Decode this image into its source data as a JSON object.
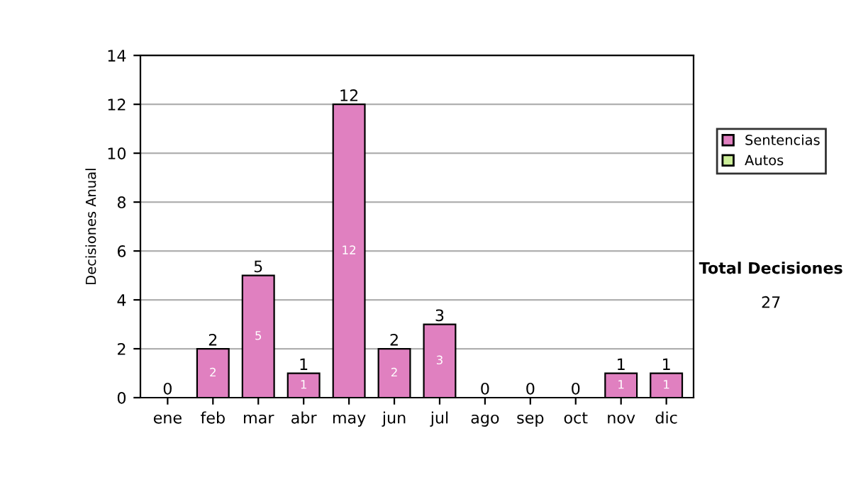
{
  "chart_data": {
    "type": "bar",
    "stacked": true,
    "ylabel": "Decisiones Anual",
    "categories": [
      "ene",
      "feb",
      "mar",
      "abr",
      "may",
      "jun",
      "jul",
      "ago",
      "sep",
      "oct",
      "nov",
      "dic"
    ],
    "series": [
      {
        "name": "Sentencias",
        "color": "#e080c0",
        "values": [
          0,
          2,
          5,
          1,
          12,
          2,
          3,
          0,
          0,
          0,
          1,
          1
        ],
        "value_labels": [
          null,
          "2",
          "5",
          "1",
          "12",
          "2",
          "3",
          null,
          null,
          null,
          "1",
          "1"
        ]
      },
      {
        "name": "Autos",
        "color": "#ccee99",
        "values": [
          0,
          0,
          0,
          0,
          0,
          0,
          0,
          0,
          0,
          0,
          0,
          0
        ]
      }
    ],
    "totals": [
      "0",
      "2",
      "5",
      "1",
      "12",
      "2",
      "3",
      "0",
      "0",
      "0",
      "1",
      "1"
    ],
    "ylim": [
      0,
      14
    ],
    "yticks": [
      0,
      2,
      4,
      6,
      8,
      10,
      12,
      14
    ],
    "grid": "y",
    "legend": "right",
    "annotations": [
      "Total Decisiones",
      "27"
    ]
  }
}
